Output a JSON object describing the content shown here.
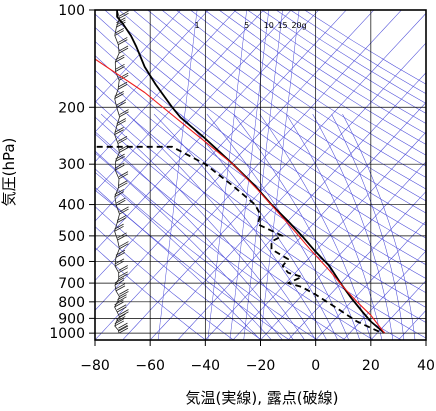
{
  "chart_data": {
    "type": "line",
    "chart_kind": "skew-T log-P aerological diagram",
    "xlabel": "気温(実線), 露点(破線)",
    "ylabel": "気圧(hPa)",
    "x_scale": "linear",
    "y_scale": "log",
    "y_inverted": true,
    "xlim": [
      -80,
      40
    ],
    "ylim": [
      1050,
      100
    ],
    "x_ticks": [
      -80,
      -60,
      -40,
      -20,
      0,
      20,
      40
    ],
    "x_tick_labels": [
      "−80",
      "−60",
      "−40",
      "−20",
      "0",
      "20",
      "40"
    ],
    "y_ticks": [
      100,
      200,
      300,
      400,
      500,
      600,
      700,
      800,
      900,
      1000
    ],
    "y_tick_labels": [
      "100",
      "200",
      "300",
      "400",
      "500",
      "600",
      "700",
      "800",
      "900",
      "1000"
    ],
    "mixing_ratio_labels": [
      "1",
      "5",
      "10",
      "15",
      "20g"
    ],
    "mixing_ratio_label_x": [
      -43,
      -25,
      -17,
      -12,
      -6
    ],
    "grid": true,
    "background_lines": {
      "isotherm_color": "#4a4ad8",
      "dry_adiabat_color": "#4a4ad8",
      "moist_adiabat_color": "#4a4ad8",
      "mixing_ratio_color": "#4a4ad8",
      "grid_color": "#000000"
    },
    "series": [
      {
        "role": "temperature",
        "style": "solid",
        "color": "#000000",
        "x": [
          -72,
          -72,
          -70,
          -67,
          -65,
          -62,
          -58,
          -52,
          -49,
          -40,
          -30,
          -22,
          -16,
          -10,
          -5,
          0,
          5,
          9,
          13,
          17,
          20,
          25
        ],
        "y": [
          100,
          105,
          110,
          120,
          130,
          150,
          170,
          200,
          215,
          250,
          300,
          350,
          400,
          450,
          500,
          560,
          620,
          700,
          780,
          860,
          920,
          1000
        ]
      },
      {
        "role": "dewpoint",
        "style": "dashed",
        "color": "#000000",
        "x": [
          -83,
          -52,
          -40,
          -30,
          -22,
          -20,
          -21,
          -12,
          -16,
          -16,
          -10,
          -12,
          -10,
          -5,
          -10,
          -5,
          0,
          8,
          15,
          23
        ],
        "y": [
          265,
          265,
          300,
          350,
          400,
          430,
          460,
          500,
          520,
          550,
          590,
          620,
          650,
          670,
          700,
          720,
          760,
          840,
          920,
          990
        ]
      },
      {
        "role": "parcel path",
        "style": "solid",
        "color": "#ee1c1c",
        "x": [
          -81,
          -62,
          -44,
          -30,
          -21,
          -14,
          -7,
          -2,
          5,
          10,
          15,
          20,
          25
        ],
        "y": [
          140,
          180,
          240,
          300,
          360,
          420,
          490,
          550,
          640,
          720,
          800,
          880,
          1000
        ]
      }
    ],
    "wind_barbs": {
      "axis_x": -72,
      "pressures": [
        100,
        106,
        113,
        120,
        128,
        136,
        145,
        155,
        165,
        176,
        188,
        200,
        214,
        228,
        243,
        259,
        276,
        294,
        313,
        333,
        355,
        378,
        402,
        428,
        455,
        484,
        515,
        548,
        583,
        620,
        650,
        680,
        710,
        740,
        770,
        800,
        830,
        860,
        890,
        920,
        950,
        980,
        1000
      ],
      "barbs": [
        2,
        2,
        3,
        2,
        2,
        2,
        2,
        2,
        2,
        2,
        2,
        2,
        2,
        2,
        2,
        2,
        2,
        2,
        2,
        2,
        2,
        2,
        2,
        2,
        2,
        2,
        2,
        2,
        2,
        2,
        2,
        2,
        2,
        2,
        2,
        2,
        2,
        2,
        2,
        2,
        2,
        2,
        2
      ]
    }
  }
}
